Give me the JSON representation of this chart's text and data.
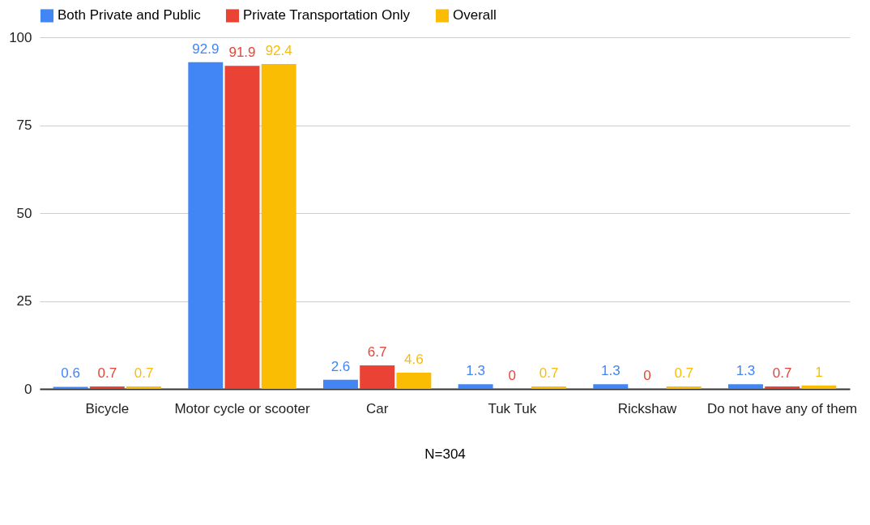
{
  "chart_data": {
    "type": "bar",
    "xlabel": "N=304",
    "categories": [
      "Bicycle",
      "Motor cycle or scooter",
      "Car",
      "Tuk Tuk",
      "Rickshaw",
      "Do not have any of them"
    ],
    "series": [
      {
        "name": "Both Private and Public",
        "color": "#4285f4",
        "values": [
          0.6,
          92.9,
          2.6,
          1.3,
          1.3,
          1.3
        ]
      },
      {
        "name": "Private Transportation Only",
        "color": "#ea4335",
        "values": [
          0.7,
          91.9,
          6.7,
          0,
          0,
          0.7
        ]
      },
      {
        "name": "Overall",
        "color": "#fbbc04",
        "values": [
          0.7,
          92.4,
          4.6,
          0.7,
          0.7,
          1
        ]
      }
    ],
    "ylim": [
      0,
      100
    ],
    "yticks": [
      0,
      25,
      50,
      75,
      100
    ],
    "grid": "y",
    "legend": "top",
    "data_labels": true
  }
}
